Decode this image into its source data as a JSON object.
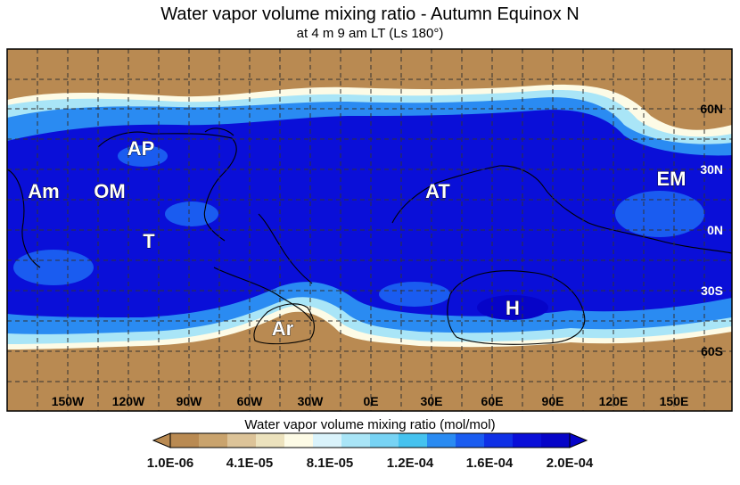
{
  "title": "Water vapor volume mixing ratio - Autumn Equinox N",
  "subtitle": "at 4 m 9 am LT (Ls 180°)",
  "map": {
    "lon_labels": [
      "150W",
      "120W",
      "90W",
      "60W",
      "30W",
      "0E",
      "30E",
      "60E",
      "90E",
      "120E",
      "150E"
    ],
    "lat_labels": [
      "60N",
      "30N",
      "0N",
      "30S",
      "60S"
    ],
    "regions": [
      "Am",
      "OM",
      "AP",
      "T",
      "AT",
      "EM",
      "H",
      "Ar"
    ],
    "grid": true
  },
  "colorbar": {
    "title": "Water vapor volume mixing ratio (mol/mol)",
    "tick_labels": [
      "1.0E-06",
      "4.1E-05",
      "8.1E-05",
      "1.2E-04",
      "1.6E-04",
      "2.0E-04"
    ],
    "colors": [
      "#b98a52",
      "#c9a36d",
      "#dcc398",
      "#ece2bd",
      "#fdfbe6",
      "#daf3fb",
      "#a9e5f7",
      "#77d3f4",
      "#45c2ef",
      "#2a8bf2",
      "#1a5cf0",
      "#0f30e6",
      "#0a0fd8",
      "#0604c8"
    ]
  }
}
